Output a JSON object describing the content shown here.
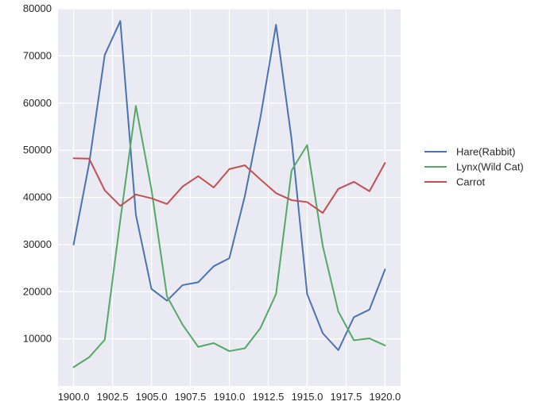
{
  "chart_data": {
    "type": "line",
    "title": "",
    "xlabel": "",
    "ylabel": "",
    "x": [
      1900,
      1901,
      1902,
      1903,
      1904,
      1905,
      1906,
      1907,
      1908,
      1909,
      1910,
      1911,
      1912,
      1913,
      1914,
      1915,
      1916,
      1917,
      1918,
      1919,
      1920
    ],
    "xlim": [
      1899,
      1921
    ],
    "ylim": [
      0,
      80000
    ],
    "x_ticks": [
      1900.0,
      1902.5,
      1905.0,
      1907.5,
      1910.0,
      1912.5,
      1915.0,
      1917.5,
      1920.0
    ],
    "x_tick_labels": [
      "1900.0",
      "1902.5",
      "1905.0",
      "1907.5",
      "1910.0",
      "1912.5",
      "1915.0",
      "1917.5",
      "1920.0"
    ],
    "y_ticks": [
      10000,
      20000,
      30000,
      40000,
      50000,
      60000,
      70000,
      80000
    ],
    "y_tick_labels": [
      "10000",
      "20000",
      "30000",
      "40000",
      "50000",
      "60000",
      "70000",
      "80000"
    ],
    "grid": true,
    "background": "#EAEAF2",
    "legend_position": "right",
    "series": [
      {
        "name": "Hare(Rabbit)",
        "color": "#4C72B0",
        "values": [
          30000,
          47200,
          70200,
          77400,
          36300,
          20600,
          18100,
          21400,
          22000,
          25400,
          27100,
          40300,
          57000,
          76600,
          52300,
          19500,
          11200,
          7600,
          14600,
          16200,
          24700
        ]
      },
      {
        "name": "Lynx(Wild Cat)",
        "color": "#55A868",
        "values": [
          4000,
          6100,
          9800,
          35200,
          59400,
          41700,
          19000,
          13000,
          8300,
          9100,
          7400,
          8000,
          12300,
          19500,
          45700,
          51100,
          29700,
          15800,
          9700,
          10100,
          8600
        ]
      },
      {
        "name": "Carrot",
        "color": "#C44E52",
        "values": [
          48300,
          48200,
          41500,
          38200,
          40600,
          39800,
          38600,
          42300,
          44500,
          42100,
          46000,
          46800,
          43800,
          40900,
          39400,
          39000,
          36700,
          41800,
          43300,
          41300,
          47300
        ]
      }
    ]
  }
}
